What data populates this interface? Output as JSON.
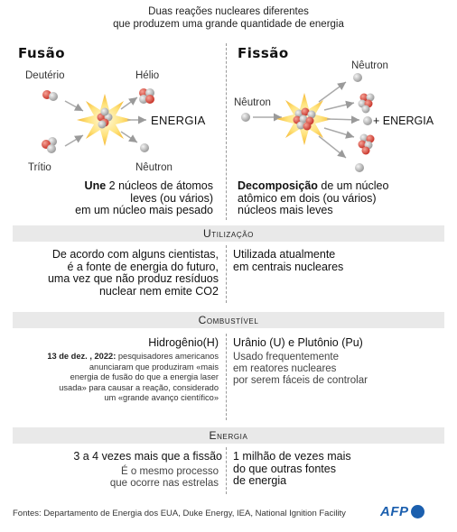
{
  "title": {
    "line1": "Duas reações nucleares diferentes",
    "line2": "que produzem uma grande quantidade de energia"
  },
  "fusion": {
    "heading": "Fusão",
    "label_deuterium": "Deutério",
    "label_tritium": "Trítio",
    "label_helium": "Hélio",
    "label_neutron": "Nêutron",
    "label_energy": "ENERGIA",
    "desc_bold": "Une",
    "desc_rest": " 2 núcleos de átomos",
    "desc_line2": "leves (ou vários)",
    "desc_line3": "em um núcleo mais pesado"
  },
  "fission": {
    "heading": "Fissão",
    "label_neutron_in": "Nêutron",
    "label_neutron_out": "Nêutron",
    "label_energy": "+ ENERGIA",
    "desc_bold": "Decomposição",
    "desc_rest": " de um núcleo",
    "desc_line2": "atômico em dois (ou vários)",
    "desc_line3": "núcleos mais leves"
  },
  "sections": {
    "usage": {
      "heading": "Utilização",
      "left": [
        "De acordo com alguns cientistas,",
        "é a fonte de energia do futuro,",
        "uma vez que não produz resíduos",
        "nuclear nem emite CO2"
      ],
      "right": [
        "Utilizada atualmente",
        "em centrais nucleares"
      ]
    },
    "fuel": {
      "heading": "Combustível",
      "left_title": "Hidrogênio(H)",
      "note_date": "13 de dez. , 2022:",
      "note_lines": [
        " pesquisadores americanos",
        "anunciaram que produziram «mais",
        "energia de fusão do que a energia laser",
        "usada» para causar a reação, considerado",
        "um «grande avanço científico»"
      ],
      "right_title": "Urânio (U) e Plutônio (Pu)",
      "right_lines": [
        "Usado frequentemente",
        "em reatores nucleares",
        "por serem fáceis de controlar"
      ]
    },
    "energy": {
      "heading": "Energia",
      "left_title": "3 a 4 vezes mais que a fissão",
      "left_sub": [
        "É o mesmo processo",
        "que ocorre nas estrelas"
      ],
      "right_lines": [
        "1 milhão de vezes mais",
        "do que outras fontes",
        "de energia"
      ]
    }
  },
  "footer": {
    "sources": "Fontes: Departamento de Energia dos EUA, Duke Energy, IEA, National Ignition Facility",
    "logo": "AFP"
  },
  "colors": {
    "proton": "#d9473c",
    "neutron": "#b8b8b8",
    "flash": "#f6c23a",
    "band": "#e9e9e9",
    "afp_blue": "#1b5fae"
  }
}
